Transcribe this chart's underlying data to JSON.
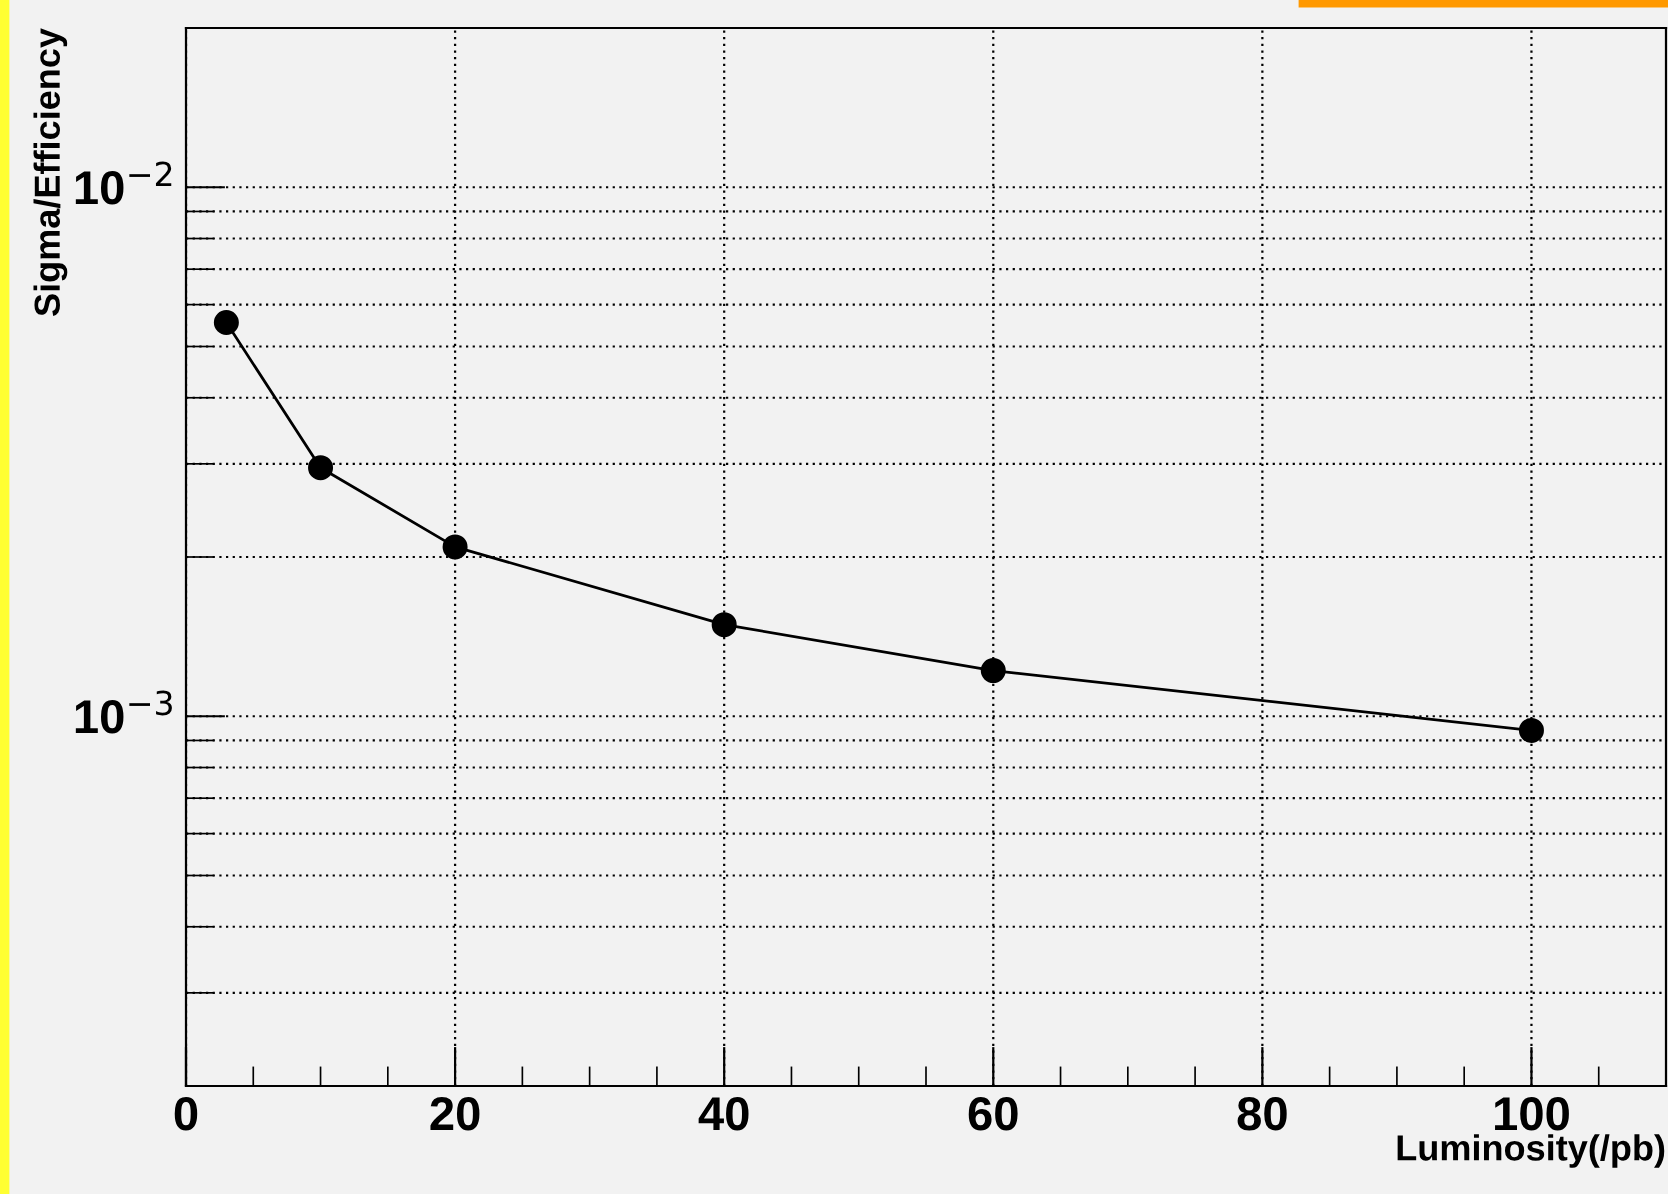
{
  "chart_data": {
    "type": "line",
    "xlabel": "Luminosity(/pb)",
    "ylabel": "Sigma/Efficiency",
    "log": "y",
    "grid": true,
    "marker": "circle",
    "line_style": "solid",
    "x": [
      3,
      10,
      20,
      40,
      60,
      100
    ],
    "series": [
      {
        "color": "#000000",
        "values": [
          0.00555,
          0.00295,
          0.00209,
          0.00149,
          0.00122,
          0.00094
        ]
      }
    ],
    "xlim": [
      0,
      110
    ],
    "xticks": [
      0,
      {
        "value": 5,
        "label": null
      },
      {
        "value": 10,
        "label": null
      },
      {
        "value": 15,
        "label": null
      },
      20,
      {
        "value": 25,
        "label": null
      },
      {
        "value": 30,
        "label": null
      },
      {
        "value": 35,
        "label": null
      },
      40,
      {
        "value": 45,
        "label": null
      },
      {
        "value": 50,
        "label": null
      },
      {
        "value": 55,
        "label": null
      },
      60,
      {
        "value": 65,
        "label": null
      },
      {
        "value": 70,
        "label": null
      },
      {
        "value": 75,
        "label": null
      },
      80,
      {
        "value": 85,
        "label": null
      },
      {
        "value": 90,
        "label": null
      },
      {
        "value": 95,
        "label": null
      },
      100,
      {
        "value": 105,
        "label": null
      }
    ],
    "ylim": [
      0.0002,
      0.02
    ],
    "yticks": [
      {
        "value": 0.0003,
        "label": null
      },
      {
        "value": 0.0004,
        "label": null
      },
      {
        "value": 0.0005,
        "label": null
      },
      {
        "value": 0.0006,
        "label": null
      },
      {
        "value": 0.0007,
        "label": null
      },
      {
        "value": 0.0008,
        "label": null
      },
      {
        "value": 0.0009,
        "label": null
      },
      {
        "value": 0.001,
        "label": "10$^{−3}$"
      },
      {
        "value": 0.002,
        "label": null
      },
      {
        "value": 0.003,
        "label": null
      },
      {
        "value": 0.004,
        "label": null
      },
      {
        "value": 0.005,
        "label": null
      },
      {
        "value": 0.006,
        "label": null
      },
      {
        "value": 0.007,
        "label": null
      },
      {
        "value": 0.008,
        "label": null
      },
      {
        "value": 0.009,
        "label": null
      },
      {
        "value": 0.01,
        "label": "10$^{−2}$"
      }
    ]
  }
}
